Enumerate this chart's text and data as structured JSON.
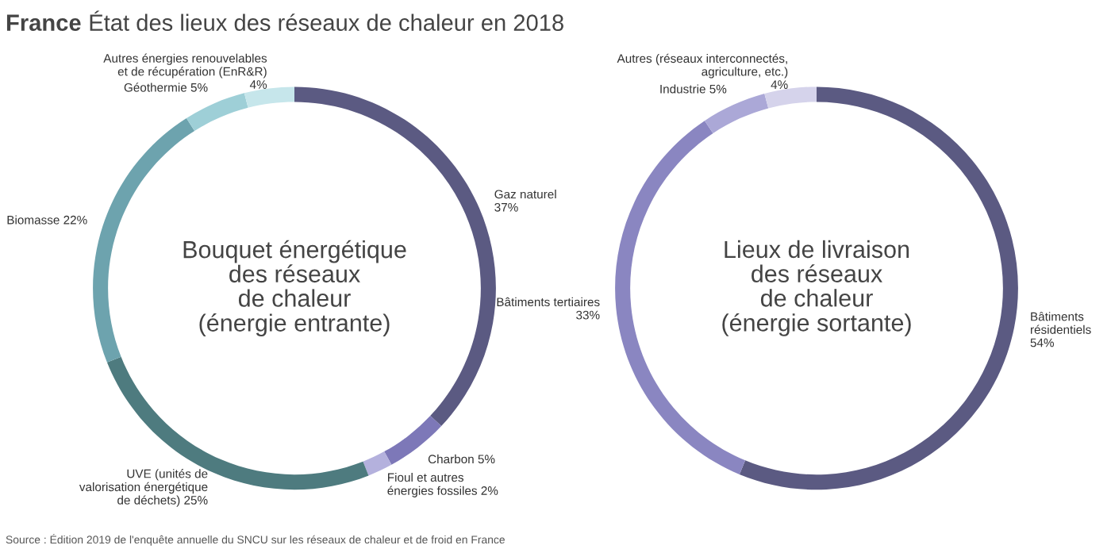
{
  "chart_data": [
    {
      "type": "donut",
      "title": "France État des lieux des réseaux de chaleur en 2018",
      "categories": [
        "Gaz naturel",
        "Charbon",
        "Fioul et autres\nénergies fossiles",
        "UVE (unités de\nvalorisation énergétique\nde déchets)",
        "Biomasse",
        "Géothermie",
        "Autres énergies renouvelables\net de récupération (EnR&R)"
      ],
      "values": [
        37,
        5,
        2,
        25,
        22,
        5,
        4
      ],
      "value_labels": [
        "37%",
        "5%",
        "2%",
        "25%",
        "22%",
        "5%",
        "4%"
      ],
      "colors": [
        "#5b5a82",
        "#7d78b8",
        "#b4b1dd",
        "#4e7b7f",
        "#6da3ae",
        "#9ecfd7",
        "#c6e6eb"
      ],
      "annotations": [
        "Bouquet énergétique\ndes réseaux\nde chaleur\n(énergie entrante)",
        "Source : Édition 2019 de l'enquête annuelle du SNCU sur les réseaux de chaleur et de froid en France"
      ]
    },
    {
      "type": "donut",
      "categories": [
        "Bâtiments\nrésidentiels",
        "Bâtiments tertiaires",
        "Industrie",
        "Autres (réseaux interconnectés,\nagriculture, etc.)"
      ],
      "values": [
        54,
        33,
        5,
        4
      ],
      "value_labels": [
        "54%",
        "33%",
        "5%",
        "4%"
      ],
      "colors": [
        "#5b5a82",
        "#8a86c1",
        "#aba8d7",
        "#d5d3eb"
      ],
      "annotations": [
        "Lieux de livraison\ndes réseaux\nde chaleur\n(énergie sortante)"
      ]
    }
  ]
}
